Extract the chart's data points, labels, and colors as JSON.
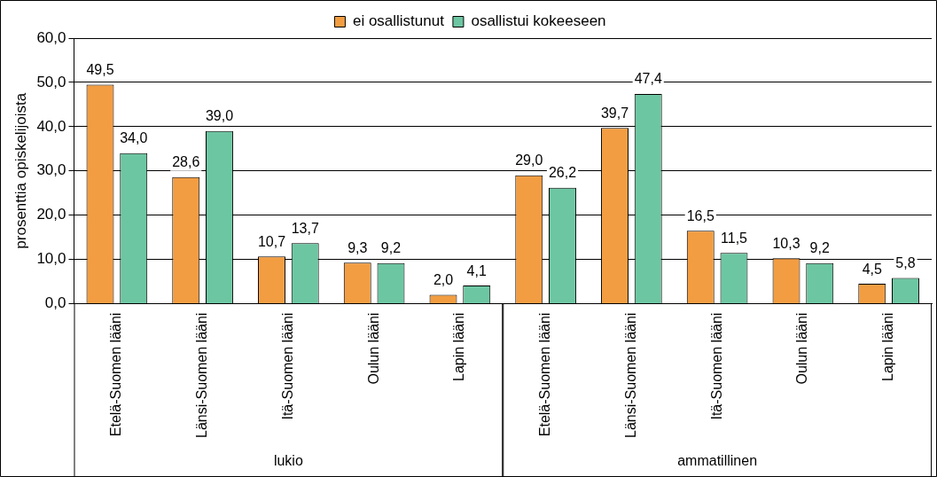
{
  "chart_data": {
    "type": "bar",
    "ylabel": "prosenttia opiskelijoista",
    "categories": [
      "Etelä-Suomen lääni",
      "Länsi-Suomen lääni",
      "Itä-Suomen lääni",
      "Oulun lääni",
      "Lapin lääni",
      "Etelä-Suomen lääni",
      "Länsi-Suomen lääni",
      "Itä-Suomen lääni",
      "Oulun lääni",
      "Lapin lääni"
    ],
    "series": [
      {
        "name": "ei osallistunut",
        "color": "#f29d42",
        "values": [
          49.5,
          28.6,
          10.7,
          9.3,
          2.0,
          29.0,
          39.7,
          16.5,
          10.3,
          4.5
        ],
        "value_labels": [
          "49,5",
          "28,6",
          "10,7",
          "9,3",
          "2,0",
          "29,0",
          "39,7",
          "16,5",
          "10,3",
          "4,5"
        ]
      },
      {
        "name": "osallistui kokeeseen",
        "color": "#6dc6a2",
        "values": [
          34.0,
          39.0,
          13.7,
          9.2,
          4.1,
          26.2,
          47.4,
          11.5,
          9.2,
          5.8
        ],
        "value_labels": [
          "34,0",
          "39,0",
          "13,7",
          "9,2",
          "4,1",
          "26,2",
          "47,4",
          "11,5",
          "9,2",
          "5,8"
        ]
      }
    ],
    "annotations": [
      "lukio",
      "ammatillinen"
    ],
    "ylim": [
      0,
      60
    ],
    "yticks": [
      {
        "value": 0,
        "label": "0,0"
      },
      {
        "value": 10,
        "label": "10,0"
      },
      {
        "value": 20,
        "label": "20,0"
      },
      {
        "value": 30,
        "label": "30,0"
      },
      {
        "value": 40,
        "label": "40,0"
      },
      {
        "value": 50,
        "label": "50,0"
      },
      {
        "value": 60,
        "label": "60,0"
      }
    ],
    "grid": "y",
    "legend": "top"
  }
}
